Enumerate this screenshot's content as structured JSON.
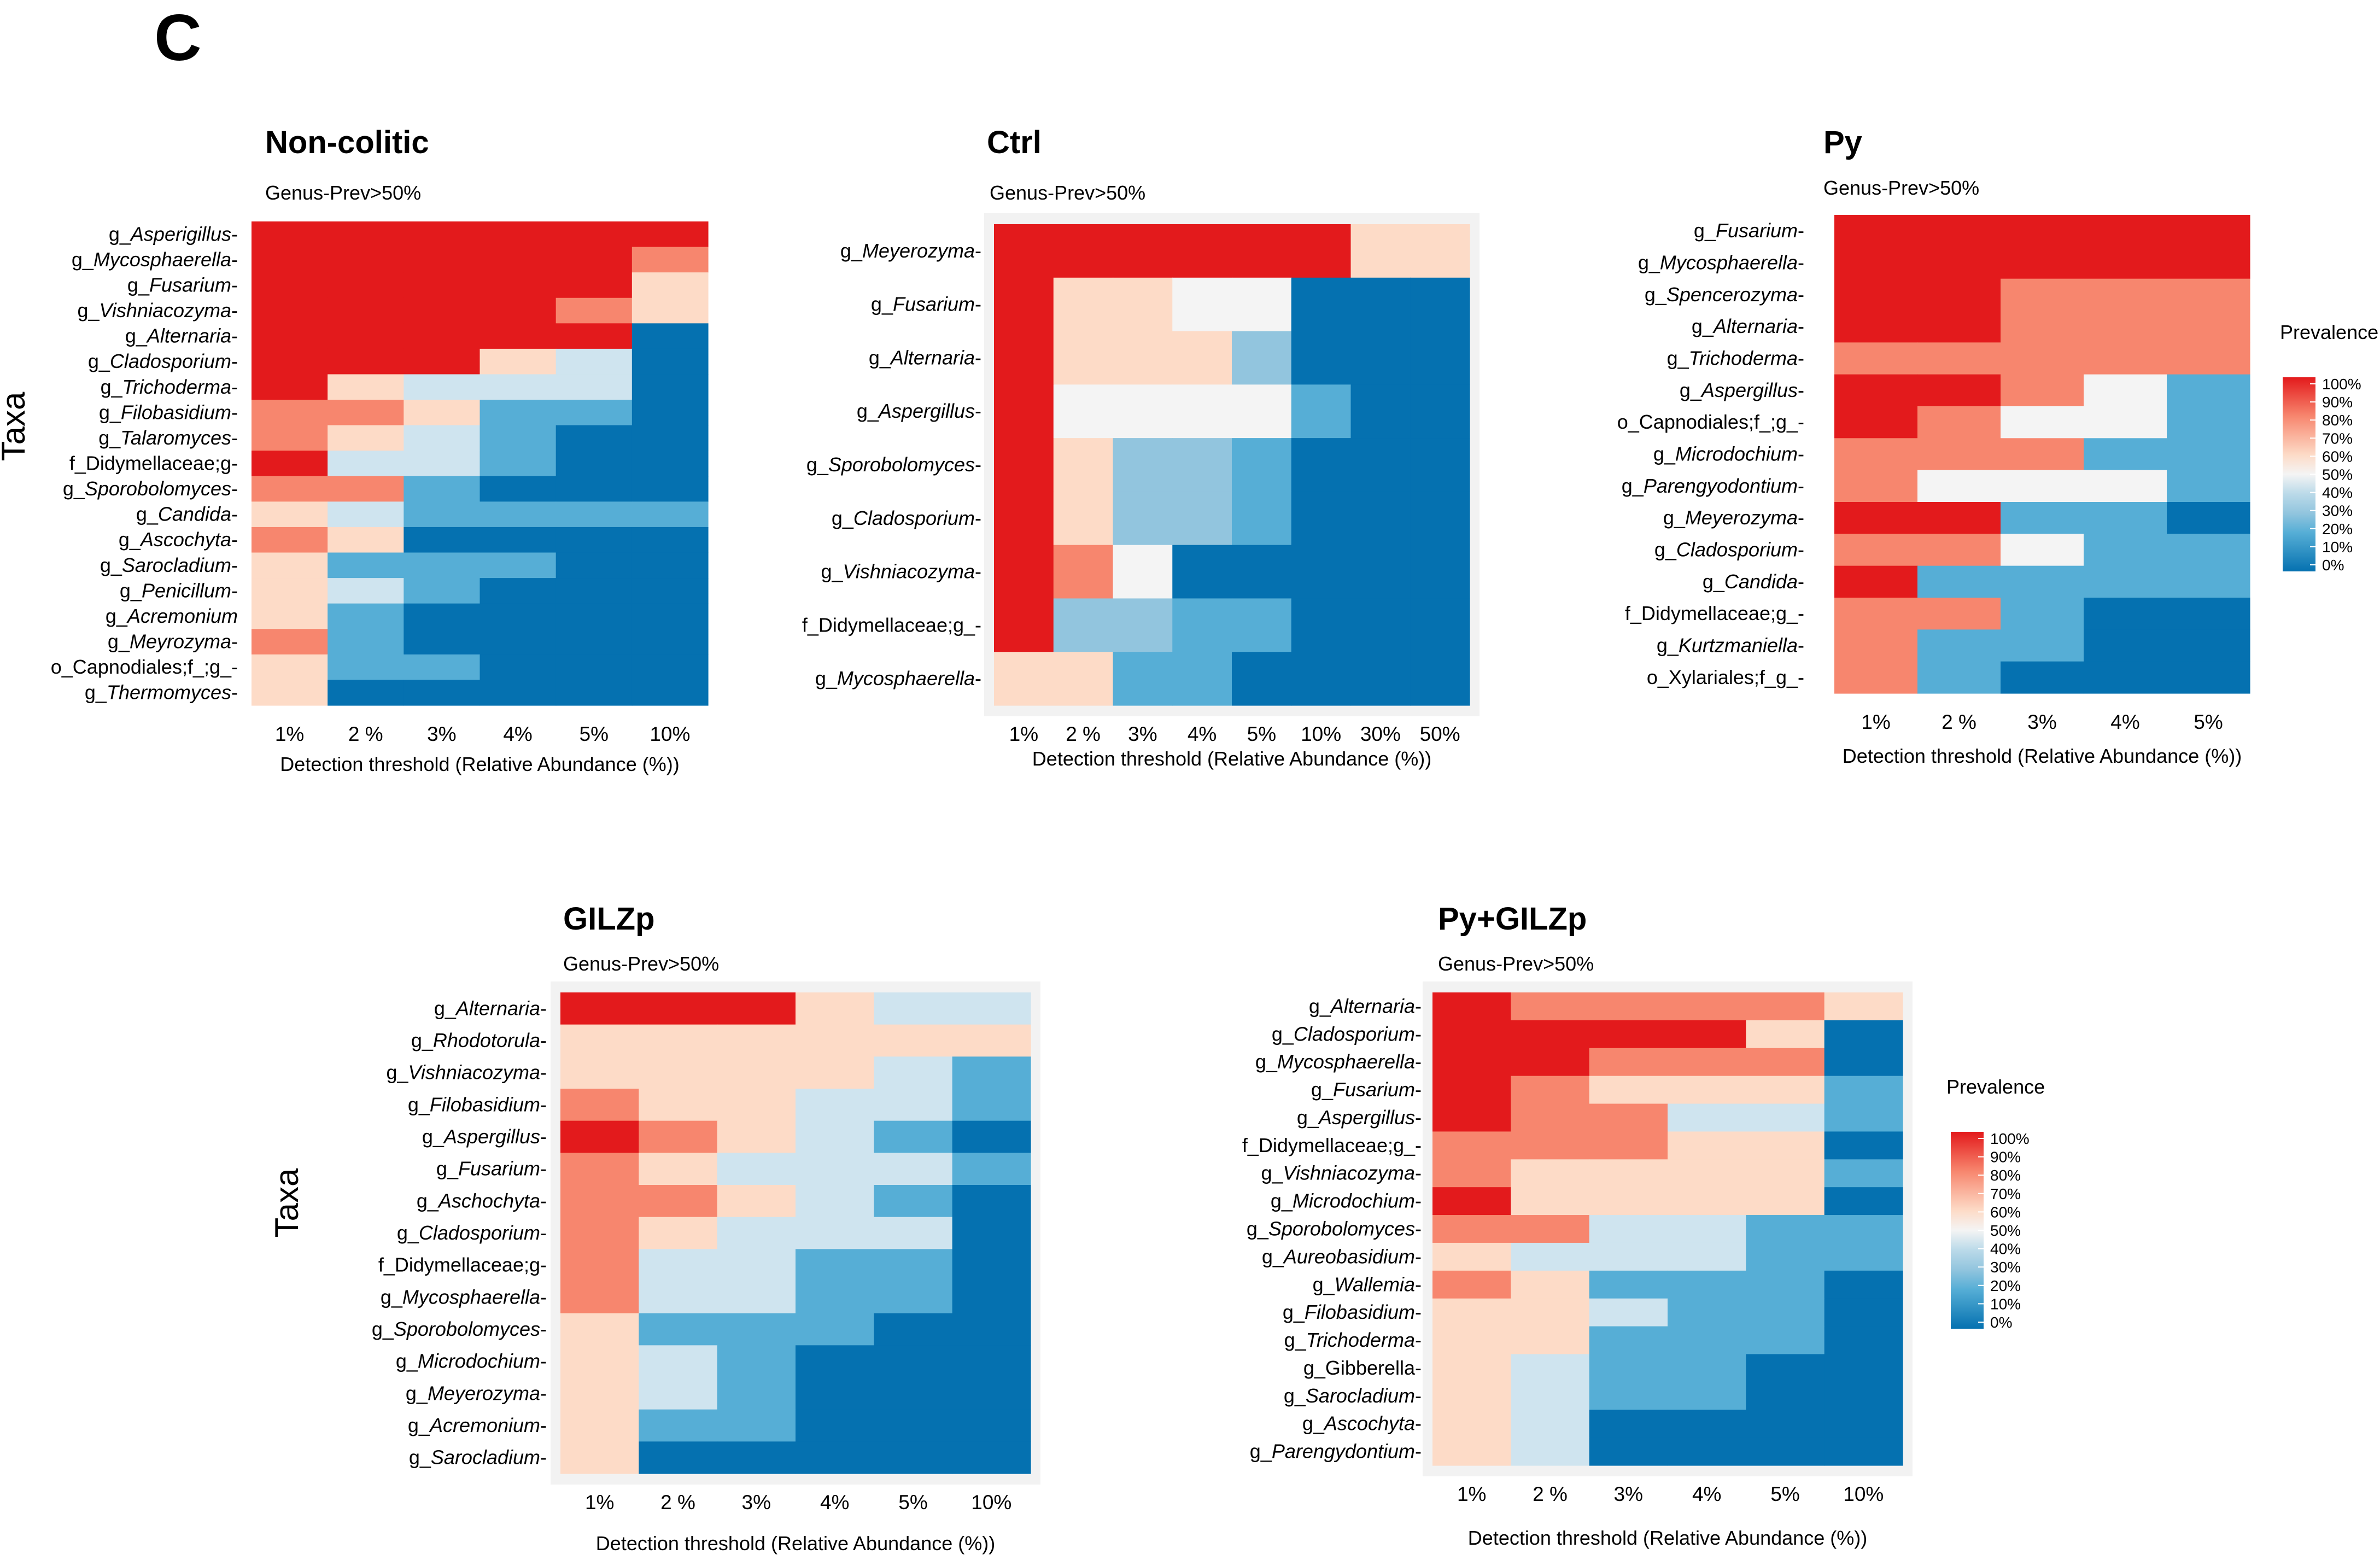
{
  "figure": {
    "panel_letter": "C"
  },
  "colors": {
    "p0": "#0571b0",
    "p20": "#56aed6",
    "p30": "#92c5de",
    "p45": "#cfe4ef",
    "p50": "#f4f4f4",
    "p60": "#fddbc7",
    "p80": "#f7866e",
    "p100": "#e31a1c",
    "panel_bg": "#f2f2f2"
  },
  "legend": {
    "title": "Prevalence",
    "ticks": [
      "100%",
      "90%",
      "80%",
      "70%",
      "60%",
      "50%",
      "40%",
      "30%",
      "20%",
      "10%",
      "0%"
    ]
  },
  "chart_data": [
    {
      "type": "heatmap",
      "title": "Non-colitic",
      "subtitle": "Genus-Prev>50%",
      "xlabel": "Detection threshold (Relative Abundance (%))",
      "ylabel": "Taxa",
      "x": [
        "1%",
        "2 %",
        "3%",
        "4%",
        "5%",
        "10%"
      ],
      "y": [
        {
          "pre": "g_",
          "it": "Asperigillus",
          "post": "-"
        },
        {
          "pre": "g_",
          "it": "Mycosphaerella",
          "post": "-"
        },
        {
          "pre": "g_",
          "it": "Fusarium",
          "post": "-"
        },
        {
          "pre": "g_",
          "it": "Vishniacozyma",
          "post": "-"
        },
        {
          "pre": "g_",
          "it": "Alternaria",
          "post": "-"
        },
        {
          "pre": "g_",
          "it": "Cladosporium",
          "post": "-"
        },
        {
          "pre": "g_",
          "it": "Trichoderma",
          "post": "-"
        },
        {
          "pre": "g_",
          "it": "Filobasidium",
          "post": "-"
        },
        {
          "pre": "g_",
          "it": "Talaromyces",
          "post": "-"
        },
        {
          "pre": "f_Didymellaceae;g-",
          "it": "",
          "post": ""
        },
        {
          "pre": "g_",
          "it": "Sporobolomyces",
          "post": "-"
        },
        {
          "pre": "g_",
          "it": "Candida",
          "post": "-"
        },
        {
          "pre": "g_",
          "it": "Ascochyta",
          "post": "-"
        },
        {
          "pre": "g_",
          "it": "Sarocladium",
          "post": "-"
        },
        {
          "pre": "g_",
          "it": "Penicillum",
          "post": "-"
        },
        {
          "pre": "g_",
          "it": "Acremonium",
          "post": ""
        },
        {
          "pre": "g_",
          "it": "Meyrozyma",
          "post": "-"
        },
        {
          "pre": "o_Capnodiales;f_;g_-",
          "it": "",
          "post": ""
        },
        {
          "pre": "g_",
          "it": "Thermomyces",
          "post": "-"
        }
      ],
      "values": [
        [
          100,
          100,
          100,
          100,
          100,
          100
        ],
        [
          100,
          100,
          100,
          100,
          100,
          80
        ],
        [
          100,
          100,
          100,
          100,
          100,
          60
        ],
        [
          100,
          100,
          100,
          100,
          80,
          60
        ],
        [
          100,
          100,
          100,
          100,
          100,
          0
        ],
        [
          100,
          100,
          100,
          60,
          45,
          0
        ],
        [
          100,
          60,
          45,
          45,
          45,
          0
        ],
        [
          80,
          80,
          60,
          20,
          20,
          0
        ],
        [
          80,
          60,
          45,
          20,
          0,
          0
        ],
        [
          100,
          45,
          45,
          20,
          0,
          0
        ],
        [
          80,
          80,
          20,
          0,
          0,
          0
        ],
        [
          60,
          45,
          20,
          20,
          20,
          20
        ],
        [
          80,
          60,
          0,
          0,
          0,
          0
        ],
        [
          60,
          20,
          20,
          20,
          0,
          0
        ],
        [
          60,
          45,
          20,
          0,
          0,
          0
        ],
        [
          60,
          20,
          0,
          0,
          0,
          0
        ],
        [
          80,
          20,
          0,
          0,
          0,
          0
        ],
        [
          60,
          20,
          20,
          0,
          0,
          0
        ],
        [
          60,
          0,
          0,
          0,
          0,
          0
        ]
      ]
    },
    {
      "type": "heatmap",
      "title": "Ctrl",
      "subtitle": "Genus-Prev>50%",
      "xlabel": "Detection threshold (Relative Abundance (%))",
      "ylabel": "",
      "x": [
        "1%",
        "2 %",
        "3%",
        "4%",
        "5%",
        "10%",
        "30%",
        "50%"
      ],
      "y": [
        {
          "pre": "g_",
          "it": "Meyerozyma",
          "post": "-"
        },
        {
          "pre": "g_",
          "it": "Fusarium",
          "post": "-"
        },
        {
          "pre": "g_",
          "it": "Alternaria",
          "post": "-"
        },
        {
          "pre": "g_",
          "it": "Aspergillus",
          "post": "-"
        },
        {
          "pre": "g_",
          "it": "Sporobolomyces",
          "post": "-"
        },
        {
          "pre": "g_",
          "it": "Cladosporium",
          "post": "-"
        },
        {
          "pre": "g_",
          "it": "Vishniacozyma",
          "post": "-"
        },
        {
          "pre": "f_Didymellaceae;g_-",
          "it": "",
          "post": ""
        },
        {
          "pre": "g_",
          "it": "Mycosphaerella",
          "post": "-"
        }
      ],
      "values": [
        [
          100,
          100,
          100,
          100,
          100,
          100,
          60,
          60
        ],
        [
          100,
          60,
          60,
          50,
          50,
          0,
          0,
          0
        ],
        [
          100,
          60,
          60,
          60,
          30,
          0,
          0,
          0
        ],
        [
          100,
          50,
          50,
          50,
          50,
          20,
          0,
          0
        ],
        [
          100,
          60,
          30,
          30,
          20,
          0,
          0,
          0
        ],
        [
          100,
          60,
          30,
          30,
          20,
          0,
          0,
          0
        ],
        [
          100,
          80,
          50,
          0,
          0,
          0,
          0,
          0
        ],
        [
          100,
          30,
          30,
          20,
          20,
          0,
          0,
          0
        ],
        [
          60,
          60,
          20,
          20,
          0,
          0,
          0,
          0
        ]
      ]
    },
    {
      "type": "heatmap",
      "title": "Py",
      "subtitle": "Genus-Prev>50%",
      "xlabel": "Detection threshold (Relative Abundance (%))",
      "ylabel": "",
      "x": [
        "1%",
        "2 %",
        "3%",
        "4%",
        "5%"
      ],
      "y": [
        {
          "pre": "g_",
          "it": "Fusarium",
          "post": "-"
        },
        {
          "pre": "g_",
          "it": "Mycosphaerella",
          "post": "-"
        },
        {
          "pre": "g_",
          "it": "Spencerozyma",
          "post": "-"
        },
        {
          "pre": "g_",
          "it": "Alternaria",
          "post": "-"
        },
        {
          "pre": "g_",
          "it": "Trichoderma",
          "post": "-"
        },
        {
          "pre": "g_",
          "it": "Aspergillus",
          "post": "-"
        },
        {
          "pre": "o_Capnodiales;f_;g_-",
          "it": "",
          "post": ""
        },
        {
          "pre": "g_",
          "it": "Microdochium",
          "post": "-"
        },
        {
          "pre": "g_",
          "it": "Parengyodontium",
          "post": "-"
        },
        {
          "pre": "g_",
          "it": "Meyerozyma",
          "post": "-"
        },
        {
          "pre": "g_",
          "it": "Cladosporium",
          "post": "-"
        },
        {
          "pre": "g_",
          "it": "Candida",
          "post": "-"
        },
        {
          "pre": "f_Didymellaceae;g_-",
          "it": "",
          "post": ""
        },
        {
          "pre": "g_",
          "it": "Kurtzmaniella",
          "post": "-"
        },
        {
          "pre": "o_Xylariales;f_g_-",
          "it": "",
          "post": ""
        }
      ],
      "values": [
        [
          100,
          100,
          100,
          100,
          100
        ],
        [
          100,
          100,
          100,
          100,
          100
        ],
        [
          100,
          100,
          80,
          80,
          80
        ],
        [
          100,
          100,
          80,
          80,
          80
        ],
        [
          80,
          80,
          80,
          80,
          80
        ],
        [
          100,
          100,
          80,
          50,
          20
        ],
        [
          100,
          80,
          50,
          50,
          20
        ],
        [
          80,
          80,
          80,
          20,
          20
        ],
        [
          80,
          50,
          50,
          50,
          20
        ],
        [
          100,
          100,
          20,
          20,
          0
        ],
        [
          80,
          80,
          50,
          20,
          20
        ],
        [
          100,
          20,
          20,
          20,
          20
        ],
        [
          80,
          80,
          20,
          0,
          0
        ],
        [
          80,
          20,
          20,
          0,
          0
        ],
        [
          80,
          20,
          0,
          0,
          0
        ]
      ]
    },
    {
      "type": "heatmap",
      "title": "GILZp",
      "subtitle": "Genus-Prev>50%",
      "xlabel": "Detection threshold (Relative Abundance (%))",
      "ylabel": "Taxa",
      "x": [
        "1%",
        "2 %",
        "3%",
        "4%",
        "5%",
        "10%"
      ],
      "y": [
        {
          "pre": "g_",
          "it": "Alternaria",
          "post": "-"
        },
        {
          "pre": "g_",
          "it": "Rhodotorula",
          "post": "-"
        },
        {
          "pre": "g_",
          "it": "Vishniacozyma",
          "post": "-"
        },
        {
          "pre": "g_",
          "it": "Filobasidium",
          "post": "-"
        },
        {
          "pre": "g_",
          "it": "Aspergillus",
          "post": "-"
        },
        {
          "pre": "g_",
          "it": "Fusarium",
          "post": "-"
        },
        {
          "pre": "g_",
          "it": "Aschochyta",
          "post": "-"
        },
        {
          "pre": "g_",
          "it": "Cladosporium",
          "post": "-"
        },
        {
          "pre": "f_Didymellaceae;g-",
          "it": "",
          "post": ""
        },
        {
          "pre": "g_",
          "it": "Mycosphaerella",
          "post": "-"
        },
        {
          "pre": "g_",
          "it": "Sporobolomyces",
          "post": "-"
        },
        {
          "pre": "g_",
          "it": "Microdochium",
          "post": "-"
        },
        {
          "pre": "g_",
          "it": "Meyerozyma",
          "post": "-"
        },
        {
          "pre": "g_",
          "it": "Acremonium",
          "post": "-"
        },
        {
          "pre": "g_",
          "it": "Sarocladium",
          "post": "-"
        }
      ],
      "values": [
        [
          100,
          100,
          100,
          60,
          45,
          45
        ],
        [
          60,
          60,
          60,
          60,
          60,
          60
        ],
        [
          60,
          60,
          60,
          60,
          45,
          20
        ],
        [
          80,
          60,
          60,
          45,
          45,
          20
        ],
        [
          100,
          80,
          60,
          45,
          20,
          0
        ],
        [
          80,
          60,
          45,
          45,
          45,
          20
        ],
        [
          80,
          80,
          60,
          45,
          20,
          0
        ],
        [
          80,
          60,
          45,
          45,
          45,
          0
        ],
        [
          80,
          45,
          45,
          20,
          20,
          0
        ],
        [
          80,
          45,
          45,
          20,
          20,
          0
        ],
        [
          60,
          20,
          20,
          20,
          0,
          0
        ],
        [
          60,
          45,
          20,
          0,
          0,
          0
        ],
        [
          60,
          45,
          20,
          0,
          0,
          0
        ],
        [
          60,
          20,
          20,
          0,
          0,
          0
        ],
        [
          60,
          0,
          0,
          0,
          0,
          0
        ]
      ]
    },
    {
      "type": "heatmap",
      "title": "Py+GILZp",
      "subtitle": "Genus-Prev>50%",
      "xlabel": "Detection threshold (Relative Abundance (%))",
      "ylabel": "",
      "x": [
        "1%",
        "2 %",
        "3%",
        "4%",
        "5%",
        "10%"
      ],
      "y": [
        {
          "pre": "g_",
          "it": "Alternaria",
          "post": "-"
        },
        {
          "pre": "g_",
          "it": "Cladosporium",
          "post": "-"
        },
        {
          "pre": "g_",
          "it": "Mycosphaerella",
          "post": "-"
        },
        {
          "pre": "g_",
          "it": "Fusarium",
          "post": "-"
        },
        {
          "pre": "g_",
          "it": "Aspergillus",
          "post": "-"
        },
        {
          "pre": "f_Didymellaceae;g_-",
          "it": "",
          "post": ""
        },
        {
          "pre": "g_",
          "it": "Vishniacozyma",
          "post": "-"
        },
        {
          "pre": "g_",
          "it": "Microdochium",
          "post": "-"
        },
        {
          "pre": "g_",
          "it": "Sporobolomyces",
          "post": "-"
        },
        {
          "pre": "g_",
          "it": "Aureobasidium",
          "post": "-"
        },
        {
          "pre": "g_",
          "it": "Wallemia",
          "post": "-"
        },
        {
          "pre": "g_",
          "it": "Filobasidium",
          "post": "-"
        },
        {
          "pre": "g_",
          "it": "Trichoderma",
          "post": "-"
        },
        {
          "pre": "g_Gibberella-",
          "it": "",
          "post": ""
        },
        {
          "pre": "g_",
          "it": "Sarocladium",
          "post": "-"
        },
        {
          "pre": "g_",
          "it": "Ascochyta",
          "post": "-"
        },
        {
          "pre": "g_",
          "it": "Parengydontium",
          "post": "-"
        }
      ],
      "values": [
        [
          100,
          80,
          80,
          80,
          80,
          60
        ],
        [
          100,
          100,
          100,
          100,
          60,
          0
        ],
        [
          100,
          100,
          80,
          80,
          80,
          0
        ],
        [
          100,
          80,
          60,
          60,
          60,
          20
        ],
        [
          100,
          80,
          80,
          45,
          45,
          20
        ],
        [
          80,
          80,
          80,
          60,
          60,
          0
        ],
        [
          80,
          60,
          60,
          60,
          60,
          20
        ],
        [
          100,
          60,
          60,
          60,
          60,
          0
        ],
        [
          80,
          80,
          45,
          45,
          20,
          20
        ],
        [
          60,
          45,
          45,
          45,
          20,
          20
        ],
        [
          80,
          60,
          20,
          20,
          20,
          0
        ],
        [
          60,
          60,
          45,
          20,
          20,
          0
        ],
        [
          60,
          60,
          20,
          20,
          20,
          0
        ],
        [
          60,
          45,
          20,
          20,
          0,
          0
        ],
        [
          60,
          45,
          20,
          20,
          0,
          0
        ],
        [
          60,
          45,
          0,
          0,
          0,
          0
        ],
        [
          60,
          45,
          0,
          0,
          0,
          0
        ]
      ]
    }
  ]
}
